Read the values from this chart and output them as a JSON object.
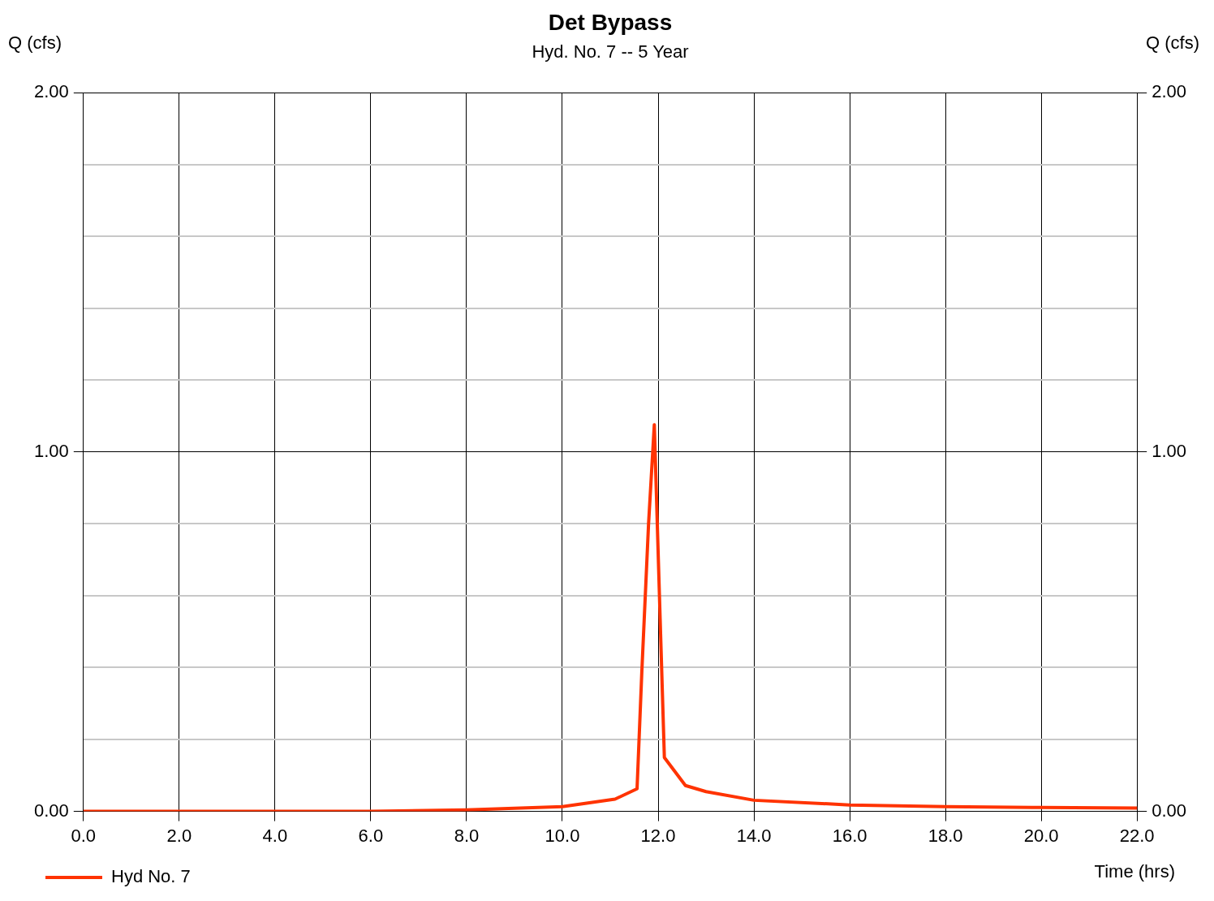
{
  "chart_data": {
    "type": "line",
    "title": "Det Bypass",
    "subtitle": "Hyd. No. 7 -- 5 Year",
    "xlabel": "Time (hrs)",
    "ylabel": "Q (cfs)",
    "y2label": "Q (cfs)",
    "series": [
      {
        "name": "Hyd No. 7",
        "color": "#ff3300",
        "x": [
          0,
          6,
          8,
          10,
          11.1,
          11.56,
          11.66,
          11.8,
          11.92,
          12.05,
          12.13,
          12.57,
          13,
          14,
          16,
          18,
          20,
          22
        ],
        "values": [
          0,
          0,
          0.004,
          0.013,
          0.034,
          0.063,
          0.39,
          0.8,
          1.076,
          0.5,
          0.15,
          0.072,
          0.055,
          0.031,
          0.018,
          0.013,
          0.011,
          0.009
        ]
      }
    ],
    "xlim": [
      0,
      22
    ],
    "xticks": [
      {
        "value": 0,
        "label": "0.0"
      },
      {
        "value": 2,
        "label": "2.0"
      },
      {
        "value": 4,
        "label": "4.0"
      },
      {
        "value": 6,
        "label": "6.0"
      },
      {
        "value": 8,
        "label": "8.0"
      },
      {
        "value": 10,
        "label": "10.0"
      },
      {
        "value": 12,
        "label": "12.0"
      },
      {
        "value": 14,
        "label": "14.0"
      },
      {
        "value": 16,
        "label": "16.0"
      },
      {
        "value": 18,
        "label": "18.0"
      },
      {
        "value": 20,
        "label": "20.0"
      },
      {
        "value": 22,
        "label": "22.0"
      }
    ],
    "ylim": [
      0,
      2
    ],
    "yticks": [
      {
        "value": 0,
        "label": "0.00"
      },
      {
        "value": 0.2,
        "label": null
      },
      {
        "value": 0.4,
        "label": null
      },
      {
        "value": 0.6,
        "label": null
      },
      {
        "value": 0.8,
        "label": null
      },
      {
        "value": 1,
        "label": "1.00"
      },
      {
        "value": 1.2,
        "label": null
      },
      {
        "value": 1.4,
        "label": null
      },
      {
        "value": 1.6,
        "label": null
      },
      {
        "value": 1.8,
        "label": null
      },
      {
        "value": 2,
        "label": "2.00"
      }
    ],
    "y2lim": [
      0,
      2
    ],
    "y2ticks": [
      {
        "value": 0,
        "label": "0.00"
      },
      {
        "value": 1,
        "label": "1.00"
      },
      {
        "value": 2,
        "label": "2.00"
      }
    ],
    "grid": true,
    "legend": "bottom left",
    "marker": "none",
    "line_style": "solid"
  }
}
